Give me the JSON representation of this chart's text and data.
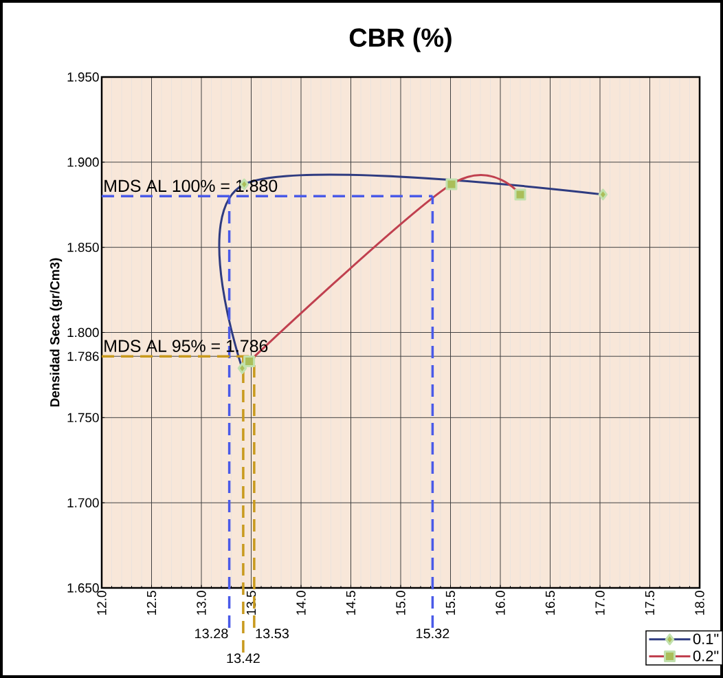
{
  "chart_data": {
    "type": "line",
    "title": "CBR (%)",
    "ylabel": "Densidad Seca (gr/Cm3)",
    "xlim": [
      12,
      18
    ],
    "xticks": [
      {
        "value": 12,
        "label": "12.0"
      },
      {
        "value": 12.5,
        "label": "12.5"
      },
      {
        "value": 13,
        "label": "13.0"
      },
      {
        "value": 13.5,
        "label": "13.5"
      },
      {
        "value": 14,
        "label": "14.0"
      },
      {
        "value": 14.5,
        "label": "14.5"
      },
      {
        "value": 15,
        "label": "15.0"
      },
      {
        "value": 15.5,
        "label": "15.5"
      },
      {
        "value": 16,
        "label": "16.0"
      },
      {
        "value": 16.5,
        "label": "16.5"
      },
      {
        "value": 17,
        "label": "17.0"
      },
      {
        "value": 17.5,
        "label": "17.5"
      },
      {
        "value": 18,
        "label": "18.0"
      }
    ],
    "ylim": [
      1.65,
      1.95
    ],
    "yticks": [
      {
        "value": 1.65,
        "label": "1.650"
      },
      {
        "value": 1.7,
        "label": "1.700"
      },
      {
        "value": 1.75,
        "label": "1.750"
      },
      {
        "value": 1.786,
        "label": "1.786"
      },
      {
        "value": 1.8,
        "label": "1.800"
      },
      {
        "value": 1.85,
        "label": "1.850"
      },
      {
        "value": 1.9,
        "label": "1.900"
      },
      {
        "value": 1.95,
        "label": "1.950"
      }
    ],
    "grid": true,
    "legend": "bottom right",
    "series": [
      {
        "name": "0.1\"",
        "color": "#2e3b80",
        "marker": "diamond",
        "x": [
          13.41,
          13.43,
          17.03
        ],
        "values": [
          1.779,
          1.887,
          1.881
        ]
      },
      {
        "name": "0.2\"",
        "color": "#c0404f",
        "marker": "square",
        "x": [
          13.48,
          15.51,
          16.2
        ],
        "values": [
          1.783,
          1.887,
          1.881
        ]
      }
    ],
    "ref_lines": [
      {
        "axis": "y",
        "value": 1.88,
        "label": "MDS AL 100% = 1.880",
        "color": "#4a5ae8",
        "line_style": "dashed"
      },
      {
        "axis": "x",
        "value": 13.28,
        "label": "13.28",
        "color": "#4a5ae8",
        "line_style": "dashed"
      },
      {
        "axis": "x",
        "value": 15.32,
        "label": "15.32",
        "color": "#4a5ae8",
        "line_style": "dashed"
      },
      {
        "axis": "y",
        "value": 1.786,
        "label": "MDS AL 95% = 1.786",
        "color": "#c89a1e",
        "line_style": "dashed"
      },
      {
        "axis": "x",
        "value": 13.42,
        "label": "13.42",
        "color": "#c89a1e",
        "line_style": "dashed"
      },
      {
        "axis": "x",
        "value": 13.53,
        "label": "13.53",
        "color": "#c89a1e",
        "line_style": "dashed"
      }
    ]
  }
}
